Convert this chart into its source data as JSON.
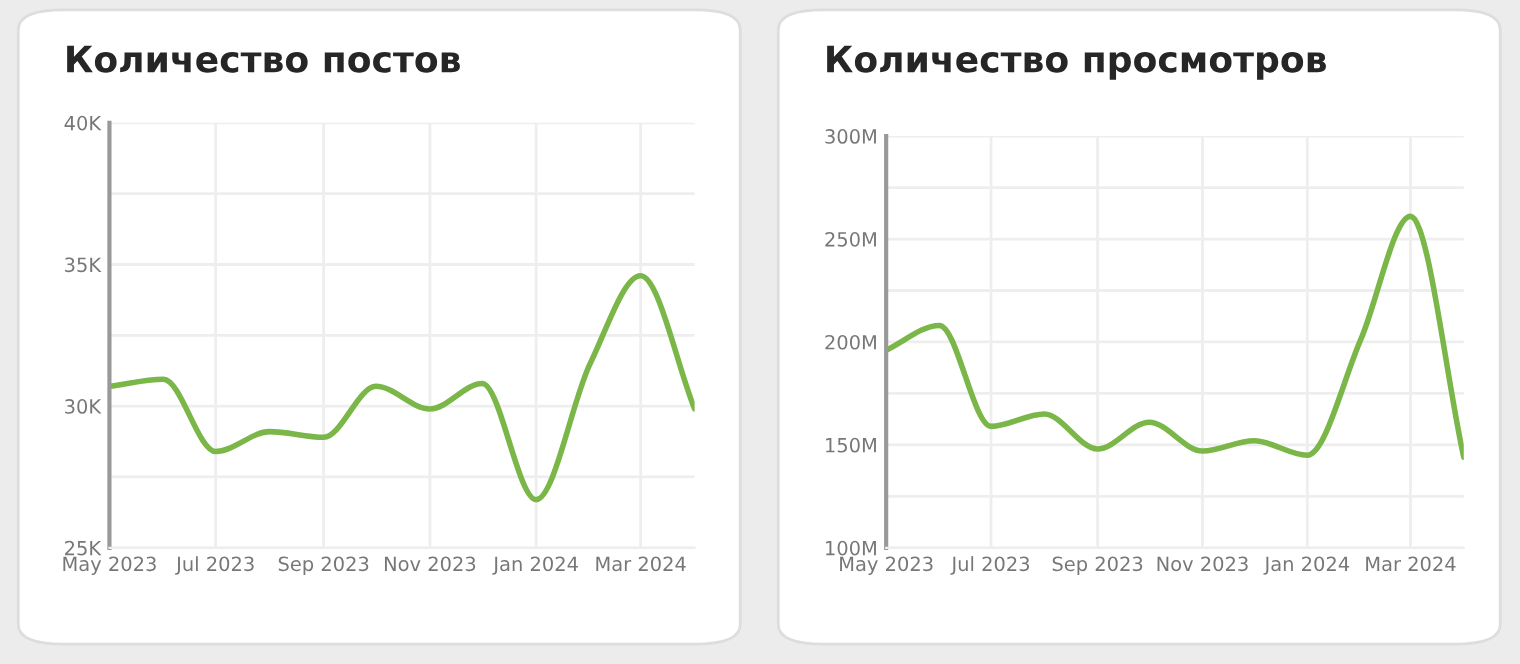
{
  "chart_data": [
    {
      "type": "line",
      "title": "Количество постов",
      "x": [
        "2023-05",
        "2023-06",
        "2023-07",
        "2023-08",
        "2023-09",
        "2023-10",
        "2023-11",
        "2023-12",
        "2024-01",
        "2024-02",
        "2024-03",
        "2024-04"
      ],
      "series": [
        {
          "color": "#7ab648",
          "values": [
            30700,
            30950,
            28400,
            29100,
            28900,
            30700,
            29900,
            30800,
            26700,
            31500,
            34600,
            29900
          ]
        }
      ],
      "xlim": [
        "2023-05",
        "2024-04"
      ],
      "xticks": [
        {
          "value": "2023-05",
          "label": "May 2023"
        },
        {
          "value": "2023-07",
          "label": "Jul 2023"
        },
        {
          "value": "2023-09",
          "label": "Sep 2023"
        },
        {
          "value": "2023-11",
          "label": "Nov 2023"
        },
        {
          "value": "2024-01",
          "label": "Jan 2024"
        },
        {
          "value": "2024-03",
          "label": "Mar 2024"
        }
      ],
      "ylim": [
        25000,
        40000
      ],
      "yticks": [
        {
          "value": 25000,
          "label": "25K"
        },
        {
          "value": 27500,
          "label": null
        },
        {
          "value": 30000,
          "label": "30K"
        },
        {
          "value": 32500,
          "label": null
        },
        {
          "value": 35000,
          "label": "35K"
        },
        {
          "value": 37500,
          "label": null
        },
        {
          "value": 40000,
          "label": "40K"
        }
      ],
      "grid": true,
      "legend": false
    },
    {
      "type": "line",
      "title": "Количество просмотров",
      "x": [
        "2023-05",
        "2023-06",
        "2023-07",
        "2023-08",
        "2023-09",
        "2023-10",
        "2023-11",
        "2023-12",
        "2024-01",
        "2024-02",
        "2024-03",
        "2024-04"
      ],
      "series": [
        {
          "color": "#7ab648",
          "values": [
            196,
            208,
            159,
            165,
            148,
            161,
            147,
            152,
            145,
            201,
            261,
            144
          ]
        }
      ],
      "xlim": [
        "2023-05",
        "2024-04"
      ],
      "xticks": [
        {
          "value": "2023-05",
          "label": "May 2023"
        },
        {
          "value": "2023-07",
          "label": "Jul 2023"
        },
        {
          "value": "2023-09",
          "label": "Sep 2023"
        },
        {
          "value": "2023-11",
          "label": "Nov 2023"
        },
        {
          "value": "2024-01",
          "label": "Jan 2024"
        },
        {
          "value": "2024-03",
          "label": "Mar 2024"
        }
      ],
      "ylim": [
        100,
        300
      ],
      "yticks": [
        {
          "value": 100,
          "label": "100M"
        },
        {
          "value": 125,
          "label": null
        },
        {
          "value": 150,
          "label": "150M"
        },
        {
          "value": 175,
          "label": null
        },
        {
          "value": 200,
          "label": "200M"
        },
        {
          "value": 225,
          "label": null
        },
        {
          "value": 250,
          "label": "250M"
        },
        {
          "value": 275,
          "label": null
        },
        {
          "value": 300,
          "label": "300M"
        }
      ],
      "grid": true,
      "legend": false
    }
  ]
}
